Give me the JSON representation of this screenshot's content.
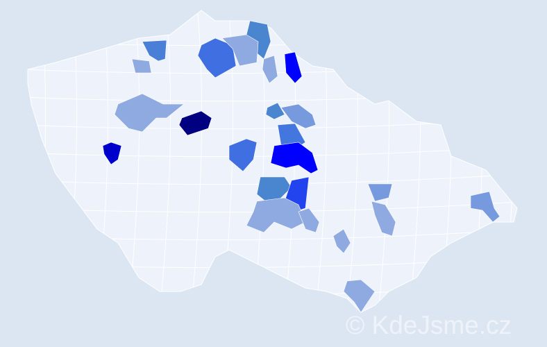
{
  "map": {
    "background": "#dce6f2",
    "base_fill": "#eef2fa",
    "border_color": "#ffffff",
    "highlighted_regions": [
      {
        "color": "#4a7fd8"
      },
      {
        "color": "#8faae0"
      },
      {
        "color": "#4a86d0"
      },
      {
        "color": "#0000ff"
      },
      {
        "color": "#3f6fe0"
      },
      {
        "color": "#8faae0"
      },
      {
        "color": "#8faae0"
      },
      {
        "color": "#000080"
      },
      {
        "color": "#0000cc"
      },
      {
        "color": "#8faae0"
      },
      {
        "color": "#4a86d0"
      },
      {
        "color": "#7799dd"
      },
      {
        "color": "#4477dd"
      },
      {
        "color": "#3f6fe0"
      },
      {
        "color": "#0000ff"
      },
      {
        "color": "#4a86d0"
      },
      {
        "color": "#2244ee"
      },
      {
        "color": "#8faae0"
      },
      {
        "color": "#8faae0"
      },
      {
        "color": "#7799dd"
      },
      {
        "color": "#8faae0"
      },
      {
        "color": "#8faae0"
      },
      {
        "color": "#7799dd"
      },
      {
        "color": "#8faae0"
      }
    ]
  },
  "watermark": "© KdeJsme.cz"
}
